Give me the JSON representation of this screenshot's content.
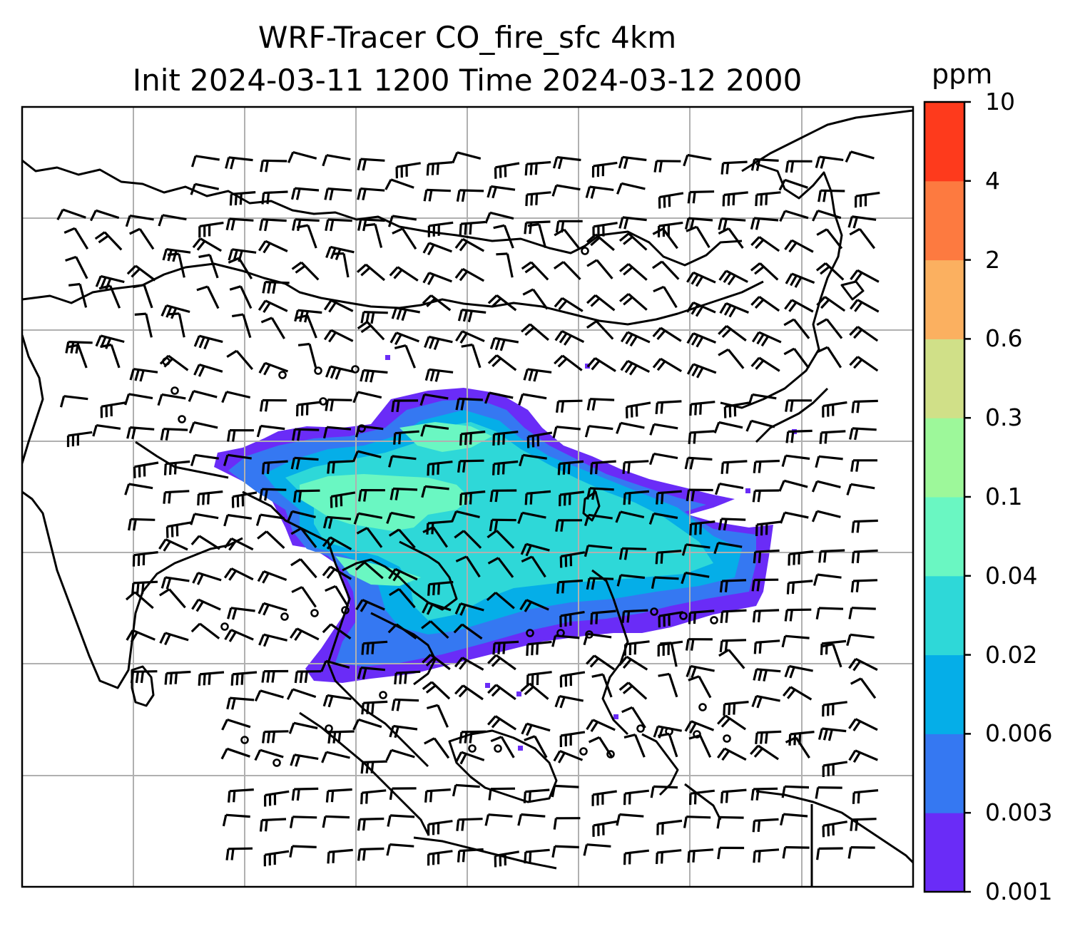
{
  "title_line1": "WRF-Tracer CO_fire_sfc 4km",
  "title_line2": "Init 2024-03-11 1200 Time 2024-03-12 2000",
  "colorbar": {
    "unit": "ppm",
    "levels": [
      "0.001",
      "0.003",
      "0.006",
      "0.02",
      "0.04",
      "0.1",
      "0.3",
      "0.6",
      "2",
      "4",
      "10"
    ],
    "colors": [
      "#6a2cf7",
      "#3578f2",
      "#05aee8",
      "#2ed8d8",
      "#6af7c2",
      "#9df89a",
      "#d0e088",
      "#fbb060",
      "#fd7a40",
      "#fe3a1c"
    ]
  },
  "map": {
    "grid": true,
    "wind_barbs": true,
    "coastlines": true,
    "plume_colors": [
      "#6a2cf7",
      "#3578f2",
      "#05aee8",
      "#2ed8d8",
      "#6af7c2"
    ]
  }
}
